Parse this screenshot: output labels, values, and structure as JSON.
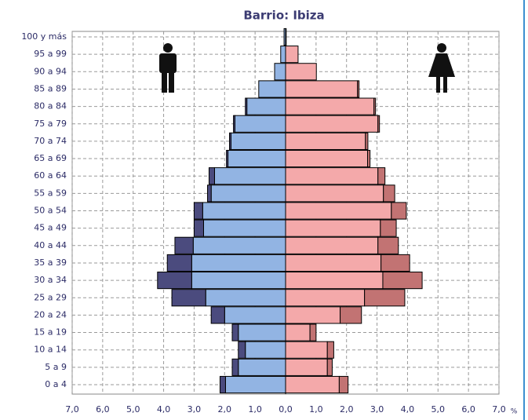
{
  "chart_data": {
    "type": "pyramid",
    "title": "Barrio: Ibiza",
    "categories": [
      "0 a 4",
      "5 a 9",
      "10 a 14",
      "15 a 19",
      "20 a 24",
      "25 a 29",
      "30 a 34",
      "35 a 39",
      "40 a 44",
      "45 a 49",
      "50 a 54",
      "55 a 59",
      "60 a 64",
      "65 a 69",
      "70 a 74",
      "75 a 79",
      "80 a 84",
      "85 a 89",
      "90 a 94",
      "95 a 99",
      "100 y más"
    ],
    "series": [
      {
        "color": "#92b4e3",
        "side": "left",
        "values": [
          -1.97,
          -1.55,
          -1.32,
          -1.55,
          -2.0,
          -2.62,
          -3.08,
          -3.08,
          -3.03,
          -2.69,
          -2.72,
          -2.44,
          -2.33,
          -1.89,
          -1.79,
          -1.66,
          -1.27,
          -0.88,
          -0.36,
          -0.16,
          -0.05
        ]
      },
      {
        "color": "#4b4b7e",
        "side": "left",
        "values": [
          -0.18,
          -0.2,
          -0.23,
          -0.2,
          -0.44,
          -1.11,
          -1.12,
          -0.8,
          -0.6,
          -0.31,
          -0.28,
          -0.12,
          -0.18,
          -0.05,
          -0.05,
          -0.05,
          -0.05,
          0,
          0,
          0,
          0
        ]
      },
      {
        "color": "#f4a9aa",
        "side": "right",
        "values": [
          1.76,
          1.37,
          1.37,
          0.8,
          1.79,
          2.59,
          3.19,
          3.13,
          3.03,
          3.11,
          3.47,
          3.21,
          3.03,
          2.69,
          2.62,
          3.03,
          2.9,
          2.36,
          1.01,
          0.41,
          0.02
        ]
      },
      {
        "color": "#c27373",
        "side": "right",
        "values": [
          0.29,
          0.16,
          0.21,
          0.2,
          0.7,
          1.32,
          1.29,
          0.94,
          0.67,
          0.52,
          0.49,
          0.37,
          0.23,
          0.08,
          0.08,
          0.05,
          0.05,
          0.05,
          0,
          0,
          0
        ]
      }
    ],
    "xlim": [
      -7,
      7
    ],
    "xticks": [
      {
        "value": -7,
        "label": "7,0"
      },
      {
        "value": -6,
        "label": "6,0"
      },
      {
        "value": -5,
        "label": "5,0"
      },
      {
        "value": -4,
        "label": "4,0"
      },
      {
        "value": -3,
        "label": "3,0"
      },
      {
        "value": -2,
        "label": "2,0"
      },
      {
        "value": -1,
        "label": "1,0"
      },
      {
        "value": 0,
        "label": "0,0"
      },
      {
        "value": 1,
        "label": "1,0"
      },
      {
        "value": 2,
        "label": "2,0"
      },
      {
        "value": 3,
        "label": "3,0"
      },
      {
        "value": 4,
        "label": "4,0"
      },
      {
        "value": 5,
        "label": "5,0"
      },
      {
        "value": 6,
        "label": "6,0"
      },
      {
        "value": 7,
        "label": "7,0"
      }
    ],
    "x_unit": "%",
    "grid": true
  }
}
